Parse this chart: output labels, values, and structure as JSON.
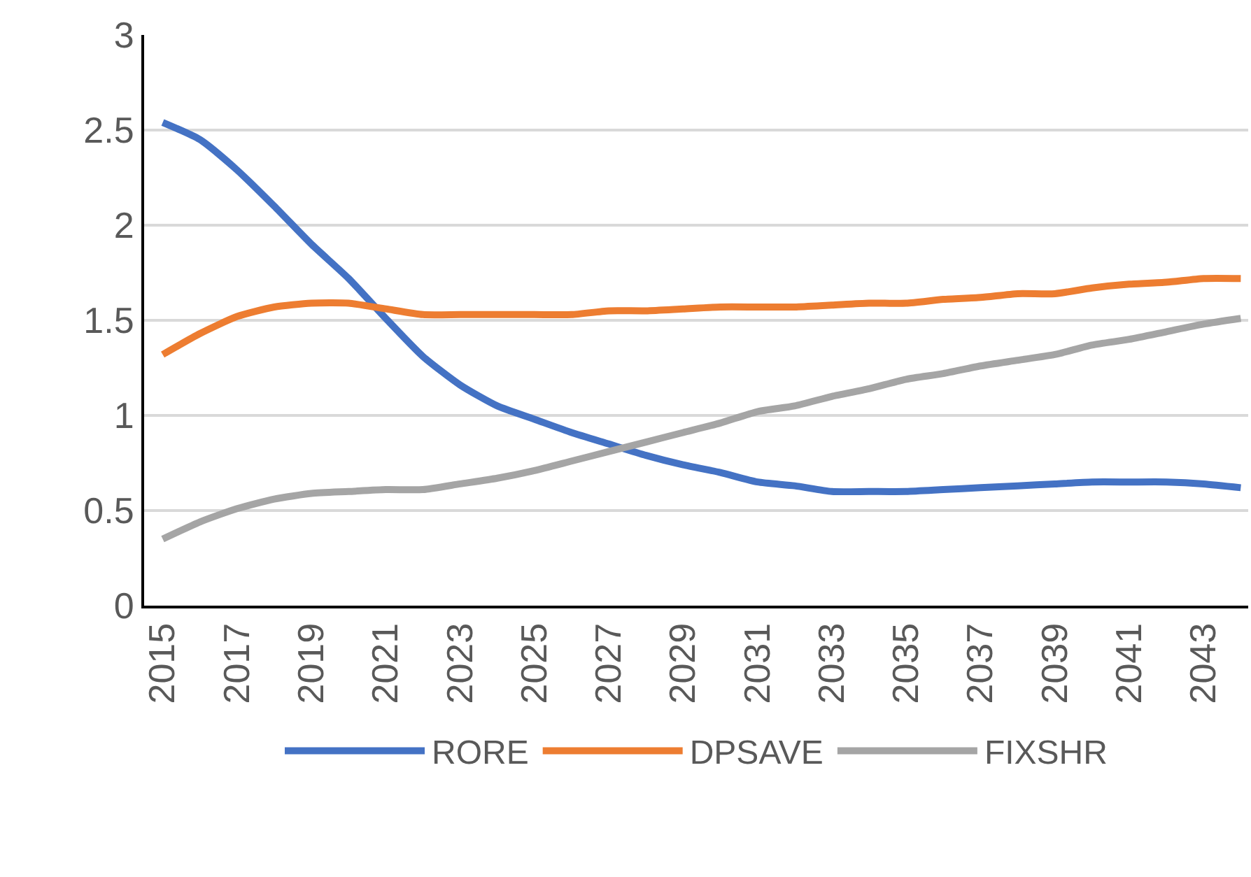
{
  "chart_data": {
    "type": "line",
    "x": [
      2015,
      2016,
      2017,
      2018,
      2019,
      2020,
      2021,
      2022,
      2023,
      2024,
      2025,
      2026,
      2027,
      2028,
      2029,
      2030,
      2031,
      2032,
      2033,
      2034,
      2035,
      2036,
      2037,
      2038,
      2039,
      2040,
      2041,
      2042,
      2043,
      2044
    ],
    "series": [
      {
        "name": "RORE",
        "color": "#4472c4",
        "values": [
          2.54,
          2.45,
          2.29,
          2.1,
          1.9,
          1.72,
          1.51,
          1.31,
          1.16,
          1.05,
          0.98,
          0.91,
          0.85,
          0.79,
          0.74,
          0.7,
          0.65,
          0.63,
          0.6,
          0.6,
          0.6,
          0.61,
          0.62,
          0.63,
          0.64,
          0.65,
          0.65,
          0.65,
          0.64,
          0.62
        ]
      },
      {
        "name": "DPSAVE",
        "color": "#ed7d31",
        "values": [
          1.32,
          1.43,
          1.52,
          1.57,
          1.59,
          1.59,
          1.56,
          1.53,
          1.53,
          1.53,
          1.53,
          1.53,
          1.55,
          1.55,
          1.56,
          1.57,
          1.57,
          1.57,
          1.58,
          1.59,
          1.59,
          1.61,
          1.62,
          1.64,
          1.64,
          1.67,
          1.69,
          1.7,
          1.72,
          1.72
        ]
      },
      {
        "name": "FIXSHR",
        "color": "#a5a5a5",
        "values": [
          0.35,
          0.44,
          0.51,
          0.56,
          0.59,
          0.6,
          0.61,
          0.61,
          0.64,
          0.67,
          0.71,
          0.76,
          0.81,
          0.86,
          0.91,
          0.96,
          1.02,
          1.05,
          1.1,
          1.14,
          1.19,
          1.22,
          1.26,
          1.29,
          1.32,
          1.37,
          1.4,
          1.44,
          1.48,
          1.51
        ]
      }
    ],
    "xlim": [
      2014.5,
      2044.2
    ],
    "xticks": [
      2015,
      2017,
      2019,
      2021,
      2023,
      2025,
      2027,
      2029,
      2031,
      2033,
      2035,
      2037,
      2039,
      2041,
      2043
    ],
    "ylim": [
      0,
      3
    ],
    "yticks": [
      0,
      0.5,
      1,
      1.5,
      2,
      2.5,
      3
    ],
    "grid": "y",
    "legend": "bottom",
    "marker": "none",
    "line_style": "solid"
  }
}
